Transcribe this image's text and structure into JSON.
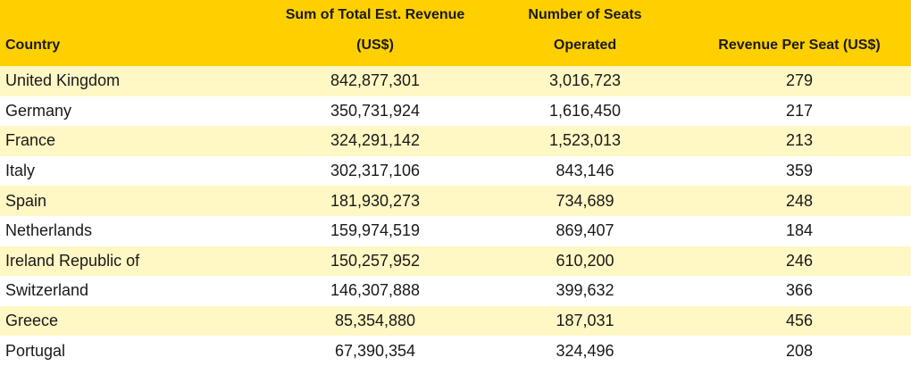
{
  "table": {
    "header": [
      "Country",
      "Sum of Total Est. Revenue (US$)",
      "Number of Seats Operated",
      "Revenue Per Seat (US$)"
    ],
    "rows": [
      [
        "United Kingdom",
        "842,877,301",
        "3,016,723",
        "279"
      ],
      [
        "Germany",
        "350,731,924",
        "1,616,450",
        "217"
      ],
      [
        "France",
        "324,291,142",
        "1,523,013",
        "213"
      ],
      [
        "Italy",
        "302,317,106",
        "843,146",
        "359"
      ],
      [
        "Spain",
        "181,930,273",
        "734,689",
        "248"
      ],
      [
        "Netherlands",
        "159,974,519",
        "869,407",
        "184"
      ],
      [
        "Ireland Republic of",
        "150,257,952",
        "610,200",
        "246"
      ],
      [
        "Switzerland",
        "146,307,888",
        "399,632",
        "366"
      ],
      [
        "Greece",
        "85,354,880",
        "187,031",
        "456"
      ],
      [
        "Portugal",
        "67,390,354",
        "324,496",
        "208"
      ]
    ]
  }
}
